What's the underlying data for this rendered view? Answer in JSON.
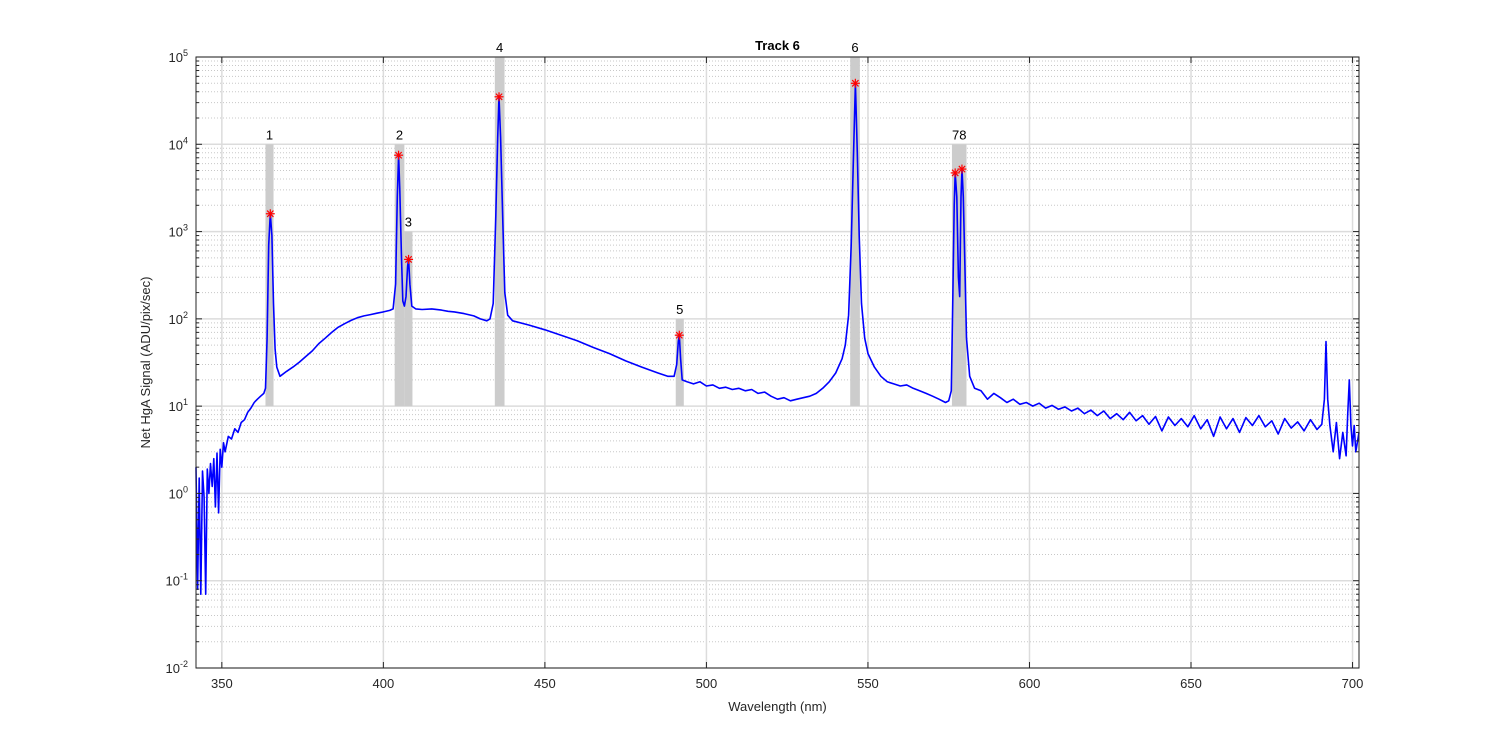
{
  "chart_data": {
    "type": "line",
    "title": "Track 6",
    "xlabel": "Wavelength (nm)",
    "ylabel": "Net HgA Signal (ADU/pix/sec)",
    "xlim": [
      342,
      702
    ],
    "ylim": [
      0.01,
      100000
    ],
    "yscale": "log",
    "grid": true,
    "minor_grid": true,
    "x_ticks": [
      "350",
      "400",
      "450",
      "500",
      "550",
      "600",
      "650",
      "700"
    ],
    "x_tick_values": [
      350,
      400,
      450,
      500,
      550,
      600,
      650,
      700
    ],
    "y_ticks": [
      {
        "base": "10",
        "exp": "-2",
        "value": 0.01
      },
      {
        "base": "10",
        "exp": "-1",
        "value": 0.1
      },
      {
        "base": "10",
        "exp": "0",
        "value": 1
      },
      {
        "base": "10",
        "exp": "1",
        "value": 10
      },
      {
        "base": "10",
        "exp": "2",
        "value": 100
      },
      {
        "base": "10",
        "exp": "3",
        "value": 1000
      },
      {
        "base": "10",
        "exp": "4",
        "value": 10000
      },
      {
        "base": "10",
        "exp": "5",
        "value": 100000
      }
    ],
    "peak_bands": [
      {
        "label": "1",
        "x0": 363.5,
        "x1": 366.0,
        "ytop": 10000
      },
      {
        "label": "2",
        "x0": 403.5,
        "x1": 406.5,
        "ytop": 10000
      },
      {
        "label": "3",
        "x0": 406.5,
        "x1": 409.0,
        "ytop": 1000
      },
      {
        "label": "4",
        "x0": 434.5,
        "x1": 437.5,
        "ytop": 100000
      },
      {
        "label": "5",
        "x0": 490.5,
        "x1": 493.0,
        "ytop": 100
      },
      {
        "label": "6",
        "x0": 544.5,
        "x1": 547.5,
        "ytop": 100000
      },
      {
        "label": "78",
        "x0": 576.0,
        "x1": 580.5,
        "ytop": 10000
      }
    ],
    "peaks": [
      {
        "x": 365.0,
        "y": 1600
      },
      {
        "x": 404.7,
        "y": 7500
      },
      {
        "x": 407.8,
        "y": 480
      },
      {
        "x": 435.8,
        "y": 35000
      },
      {
        "x": 491.6,
        "y": 65
      },
      {
        "x": 546.1,
        "y": 50000
      },
      {
        "x": 577.0,
        "y": 4700
      },
      {
        "x": 579.1,
        "y": 5200
      }
    ],
    "series": [
      {
        "color": "#0000ff",
        "points": [
          [
            342.0,
            2.0
          ],
          [
            342.5,
            0.08
          ],
          [
            343.0,
            1.5
          ],
          [
            343.5,
            0.07
          ],
          [
            344.0,
            1.8
          ],
          [
            344.5,
            0.9
          ],
          [
            345.0,
            0.07
          ],
          [
            345.5,
            1.9
          ],
          [
            346.0,
            1.0
          ],
          [
            346.5,
            2.2
          ],
          [
            347.0,
            1.2
          ],
          [
            347.5,
            2.5
          ],
          [
            348.0,
            0.7
          ],
          [
            348.5,
            2.9
          ],
          [
            349.0,
            0.6
          ],
          [
            349.5,
            3.2
          ],
          [
            350.0,
            2.0
          ],
          [
            350.5,
            3.8
          ],
          [
            351.0,
            3.0
          ],
          [
            352.0,
            4.5
          ],
          [
            353.0,
            4.2
          ],
          [
            354.0,
            5.5
          ],
          [
            355.0,
            5.0
          ],
          [
            356.0,
            6.5
          ],
          [
            357.0,
            7.0
          ],
          [
            358.0,
            8.5
          ],
          [
            359.0,
            9.5
          ],
          [
            360.0,
            11
          ],
          [
            361.0,
            12
          ],
          [
            362.0,
            13
          ],
          [
            363.0,
            14
          ],
          [
            363.5,
            16
          ],
          [
            364.0,
            60
          ],
          [
            364.5,
            700
          ],
          [
            365.0,
            1600
          ],
          [
            365.5,
            900
          ],
          [
            366.0,
            150
          ],
          [
            366.5,
            45
          ],
          [
            367.0,
            28
          ],
          [
            368.0,
            22
          ],
          [
            370.0,
            25
          ],
          [
            372.0,
            28
          ],
          [
            374.0,
            32
          ],
          [
            376.0,
            37
          ],
          [
            378.0,
            43
          ],
          [
            380.0,
            52
          ],
          [
            382.0,
            60
          ],
          [
            384.0,
            70
          ],
          [
            386.0,
            80
          ],
          [
            388.0,
            88
          ],
          [
            390.0,
            96
          ],
          [
            392.0,
            103
          ],
          [
            394.0,
            108
          ],
          [
            396.0,
            112
          ],
          [
            398.0,
            116
          ],
          [
            400.0,
            120
          ],
          [
            402.0,
            125
          ],
          [
            403.0,
            130
          ],
          [
            403.8,
            250
          ],
          [
            404.3,
            2500
          ],
          [
            404.7,
            7500
          ],
          [
            405.1,
            3000
          ],
          [
            405.6,
            500
          ],
          [
            406.0,
            160
          ],
          [
            406.5,
            140
          ],
          [
            407.0,
            180
          ],
          [
            407.5,
            400
          ],
          [
            407.8,
            480
          ],
          [
            408.2,
            250
          ],
          [
            408.8,
            140
          ],
          [
            410.0,
            130
          ],
          [
            412.0,
            128
          ],
          [
            415.0,
            130
          ],
          [
            418.0,
            126
          ],
          [
            420.0,
            122
          ],
          [
            422.0,
            120
          ],
          [
            425.0,
            115
          ],
          [
            428.0,
            108
          ],
          [
            430.0,
            100
          ],
          [
            432.0,
            95
          ],
          [
            433.0,
            100
          ],
          [
            434.0,
            150
          ],
          [
            434.8,
            1500
          ],
          [
            435.4,
            12000
          ],
          [
            435.8,
            35000
          ],
          [
            436.3,
            12000
          ],
          [
            437.0,
            1200
          ],
          [
            437.6,
            200
          ],
          [
            438.5,
            110
          ],
          [
            440.0,
            95
          ],
          [
            445.0,
            85
          ],
          [
            450.0,
            75
          ],
          [
            455.0,
            65
          ],
          [
            460.0,
            56
          ],
          [
            465.0,
            47
          ],
          [
            470.0,
            40
          ],
          [
            475.0,
            33
          ],
          [
            480.0,
            28
          ],
          [
            485.0,
            24
          ],
          [
            488.0,
            22
          ],
          [
            490.0,
            22
          ],
          [
            490.8,
            30
          ],
          [
            491.3,
            55
          ],
          [
            491.6,
            65
          ],
          [
            492.0,
            35
          ],
          [
            492.5,
            20
          ],
          [
            494.0,
            19
          ],
          [
            496.0,
            18
          ],
          [
            498.0,
            19
          ],
          [
            500.0,
            17
          ],
          [
            502.0,
            17.5
          ],
          [
            504.0,
            16
          ],
          [
            506.0,
            16.5
          ],
          [
            508.0,
            15.5
          ],
          [
            510.0,
            16
          ],
          [
            512.0,
            15
          ],
          [
            514.0,
            15.5
          ],
          [
            516.0,
            14
          ],
          [
            518.0,
            14.5
          ],
          [
            520.0,
            13
          ],
          [
            522.0,
            12
          ],
          [
            524.0,
            12.5
          ],
          [
            526.0,
            11.5
          ],
          [
            528.0,
            12
          ],
          [
            530.0,
            12.5
          ],
          [
            532.0,
            13
          ],
          [
            534.0,
            14
          ],
          [
            536.0,
            16
          ],
          [
            538.0,
            19
          ],
          [
            540.0,
            24
          ],
          [
            542.0,
            35
          ],
          [
            543.0,
            50
          ],
          [
            544.0,
            110
          ],
          [
            544.8,
            700
          ],
          [
            545.4,
            5000
          ],
          [
            546.1,
            50000
          ],
          [
            546.7,
            8000
          ],
          [
            547.3,
            900
          ],
          [
            548.0,
            150
          ],
          [
            549.0,
            60
          ],
          [
            550.0,
            40
          ],
          [
            552.0,
            28
          ],
          [
            554.0,
            22
          ],
          [
            556.0,
            19
          ],
          [
            558.0,
            18
          ],
          [
            560.0,
            17
          ],
          [
            562.0,
            17.5
          ],
          [
            564.0,
            16
          ],
          [
            566.0,
            15
          ],
          [
            568.0,
            14
          ],
          [
            570.0,
            13
          ],
          [
            572.0,
            12
          ],
          [
            574.0,
            11
          ],
          [
            575.0,
            11.5
          ],
          [
            575.8,
            15
          ],
          [
            576.3,
            200
          ],
          [
            576.7,
            2000
          ],
          [
            577.0,
            4700
          ],
          [
            577.5,
            2500
          ],
          [
            578.0,
            300
          ],
          [
            578.4,
            180
          ],
          [
            578.8,
            2500
          ],
          [
            579.1,
            5200
          ],
          [
            579.5,
            2500
          ],
          [
            580.0,
            400
          ],
          [
            580.5,
            60
          ],
          [
            581.5,
            22
          ],
          [
            583.0,
            16
          ],
          [
            585.0,
            15
          ],
          [
            587.0,
            12
          ],
          [
            589.0,
            14
          ],
          [
            591.0,
            12.5
          ],
          [
            593.0,
            11
          ],
          [
            595.0,
            12
          ],
          [
            597.0,
            10.5
          ],
          [
            599.0,
            11
          ],
          [
            601.0,
            10
          ],
          [
            603.0,
            10.8
          ],
          [
            605.0,
            9.5
          ],
          [
            607.0,
            10.2
          ],
          [
            609.0,
            9.2
          ],
          [
            611.0,
            9.8
          ],
          [
            613.0,
            8.8
          ],
          [
            615.0,
            9.5
          ],
          [
            617.0,
            8.2
          ],
          [
            619.0,
            9.0
          ],
          [
            621.0,
            7.8
          ],
          [
            623.0,
            8.8
          ],
          [
            625.0,
            7.2
          ],
          [
            627.0,
            8.2
          ],
          [
            629.0,
            7.0
          ],
          [
            631.0,
            8.5
          ],
          [
            633.0,
            6.8
          ],
          [
            635.0,
            7.8
          ],
          [
            637.0,
            6.2
          ],
          [
            639.0,
            7.6
          ],
          [
            641.0,
            5.2
          ],
          [
            643.0,
            7.5
          ],
          [
            645.0,
            6.0
          ],
          [
            647.0,
            7.2
          ],
          [
            649.0,
            5.8
          ],
          [
            651.0,
            7.8
          ],
          [
            653.0,
            5.5
          ],
          [
            655.0,
            7.0
          ],
          [
            657.0,
            4.5
          ],
          [
            659.0,
            7.5
          ],
          [
            661.0,
            5.5
          ],
          [
            663.0,
            7.2
          ],
          [
            665.0,
            5.0
          ],
          [
            667.0,
            7.4
          ],
          [
            669.0,
            6.0
          ],
          [
            671.0,
            7.8
          ],
          [
            673.0,
            5.8
          ],
          [
            675.0,
            6.8
          ],
          [
            677.0,
            4.8
          ],
          [
            679.0,
            7.2
          ],
          [
            681.0,
            5.6
          ],
          [
            683.0,
            6.6
          ],
          [
            685.0,
            5.2
          ],
          [
            687.0,
            7.0
          ],
          [
            689.0,
            5.4
          ],
          [
            690.5,
            6.2
          ],
          [
            691.3,
            12
          ],
          [
            691.8,
            55
          ],
          [
            692.3,
            12
          ],
          [
            693.0,
            6.0
          ],
          [
            694.0,
            3.0
          ],
          [
            695.0,
            6.5
          ],
          [
            696.0,
            2.5
          ],
          [
            697.0,
            5.0
          ],
          [
            698.0,
            2.7
          ],
          [
            698.5,
            8.0
          ],
          [
            699.0,
            20
          ],
          [
            699.5,
            6.0
          ],
          [
            700.0,
            3.5
          ],
          [
            700.5,
            6.0
          ],
          [
            701.0,
            3.0
          ],
          [
            702.0,
            5.0
          ]
        ]
      }
    ]
  }
}
